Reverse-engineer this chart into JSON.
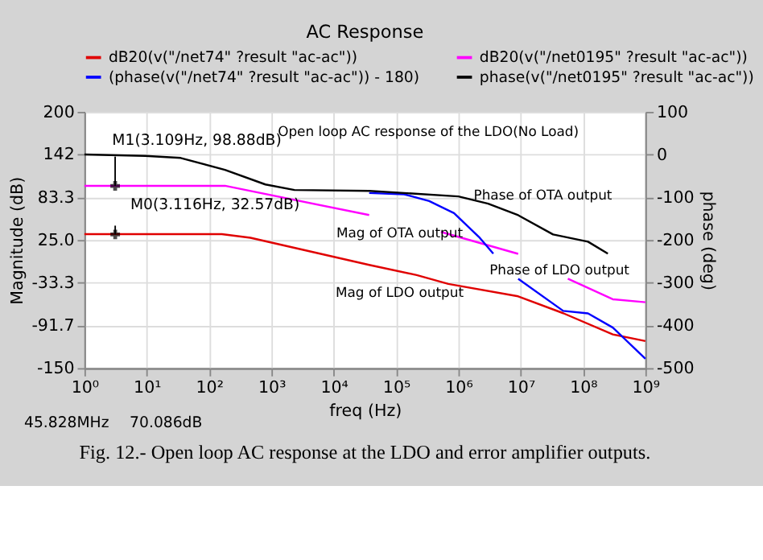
{
  "chart_data": {
    "type": "line",
    "title": "AC Response",
    "xlabel": "freq (Hz)",
    "ylabel": "Magnitude (dB)",
    "y2label": "phase (deg)",
    "log": "x",
    "grid": true,
    "legend": "top",
    "line_style": "solid",
    "marker": "none",
    "xlim": [
      1,
      1000000000
    ],
    "xticks": [
      {
        "value": 1,
        "label": "10⁰"
      },
      {
        "value": 10,
        "label": "10¹"
      },
      {
        "value": 100,
        "label": "10²"
      },
      {
        "value": 1000,
        "label": "10³"
      },
      {
        "value": 10000,
        "label": "10⁴"
      },
      {
        "value": 100000,
        "label": "10⁵"
      },
      {
        "value": 1000000,
        "label": "10⁶"
      },
      {
        "value": 10000000,
        "label": "10⁷"
      },
      {
        "value": 100000000,
        "label": "10⁸"
      },
      {
        "value": 1000000000,
        "label": "10⁹"
      }
    ],
    "ylim": [
      -150,
      200
    ],
    "yticks": [
      200,
      142,
      83.3,
      {
        "value": 25,
        "label": "25.0"
      },
      -33.3,
      -91.7,
      -150
    ],
    "y2lim": [
      -500,
      100
    ],
    "y2ticks": [
      100,
      0,
      -100,
      -200,
      -300,
      -400,
      -500
    ],
    "series": [
      {
        "name": "dB20(v(\"/net74\" ?result \"ac-ac\"))",
        "color": "#e00000",
        "x": [
          1,
          160,
          460,
          37000,
          214000,
          690000,
          9100000,
          48000000,
          300000000,
          1000000000
        ],
        "values": [
          33,
          33,
          28,
          -9,
          -23,
          -35,
          -52,
          -75,
          -104,
          -113
        ]
      },
      {
        "name": "dB20(v(\"/net0195\" ?result \"ac-ac\"))",
        "color": "#ff00ff",
        "x": [
          1,
          180,
          37000,
          40000,
          525000,
          9100000,
          9200000,
          57000000,
          300000000,
          1000000000
        ],
        "values": [
          99,
          99,
          59,
          null,
          36,
          6,
          null,
          -28,
          -56,
          -60
        ]
      },
      {
        "name": "(phase(v(\"/net74\" ?result \"ac-ac\")) - 180)",
        "color": "#0000ff",
        "axis": "y2",
        "x": [
          37000,
          135000,
          340000,
          850000,
          2140000,
          3630000,
          3700000,
          9100000,
          48000000,
          120000000,
          300000000,
          1000000000
        ],
        "values": [
          -90,
          -93,
          -109,
          -137,
          -193,
          -232,
          null,
          -291,
          -366,
          -372,
          -405,
          -478
        ]
      },
      {
        "name": "phase(v(\"/net0195\" ?result \"ac-ac\"))",
        "color": "#000000",
        "axis": "y2",
        "x": [
          1,
          9.5,
          35,
          180,
          800,
          2340,
          37000,
          1000000,
          3000000,
          9100000,
          33000000,
          120000000,
          250000000
        ],
        "values": [
          0,
          -3,
          -8,
          -36,
          -70,
          -83,
          -85,
          -98,
          -115,
          -142,
          -187,
          -204,
          -232
        ]
      }
    ],
    "annotations": [
      {
        "text": "M1(3.109Hz, 98.88dB)",
        "x": 3.109,
        "y": 98.88
      },
      {
        "text": "M0(3.116Hz, 32.57dB)",
        "x": 3.116,
        "y": 32.57
      },
      "Open loop AC response of the LDO(No Load)",
      "Phase of OTA output",
      "Mag of OTA output",
      "Phase of LDO output",
      "Mag of LDO output",
      "45.828MHz",
      "70.086dB",
      "Fig. 12.- Open loop AC response at the LDO and error amplifier outputs."
    ]
  }
}
